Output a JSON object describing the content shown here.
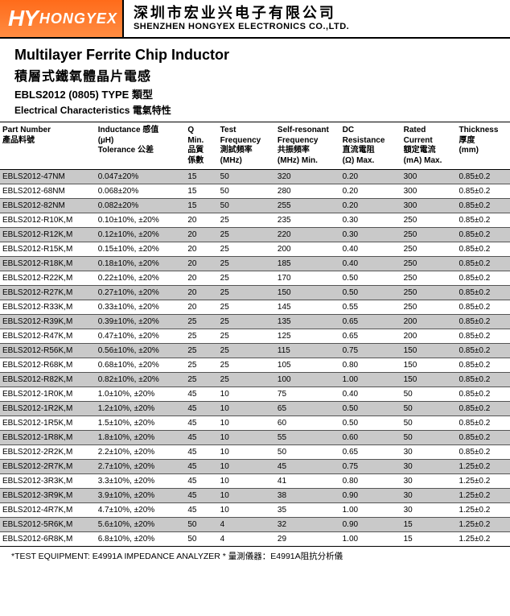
{
  "header": {
    "logo_hy": "HY",
    "logo_brand": "HONGYEX",
    "company_cn": "深圳市宏业兴电子有限公司",
    "company_en": "SHENZHEN HONGYEX ELECTRONICS CO.,LTD."
  },
  "titles": {
    "title_en": "Multilayer Ferrite Chip Inductor",
    "title_cn": "積層式鐵氧體晶片電感",
    "subtitle": "EBLS2012 (0805) TYPE 類型",
    "elec": "Electrical Characteristics 電氣特性"
  },
  "columns": {
    "pn": "Part Number\n產品料號",
    "ind": "Inductance 感值\n(µH)\nTolerance 公差",
    "q": "Q\nMin.\n品質\n係數",
    "tf": "Test\nFrequency\n測試頻率\n(MHz)",
    "sr": "Self-resonant\nFrequency\n共振頻率\n(MHz) Min.",
    "dc": "DC\nResistance\n直流電阻\n(Ω) Max.",
    "rc": "Rated\nCurrent\n額定電流\n(mA) Max.",
    "th": "Thickness\n厚度\n(mm)"
  },
  "rows": [
    {
      "pn": "EBLS2012-47NM",
      "ind": "0.047±20%",
      "q": "15",
      "tf": "50",
      "sr": "320",
      "dc": "0.20",
      "rc": "300",
      "th": "0.85±0.2",
      "alt": true
    },
    {
      "pn": "EBLS2012-68NM",
      "ind": "0.068±20%",
      "q": "15",
      "tf": "50",
      "sr": "280",
      "dc": "0.20",
      "rc": "300",
      "th": "0.85±0.2",
      "alt": false
    },
    {
      "pn": "EBLS2012-82NM",
      "ind": "0.082±20%",
      "q": "15",
      "tf": "50",
      "sr": "255",
      "dc": "0.20",
      "rc": "300",
      "th": "0.85±0.2",
      "alt": true
    },
    {
      "pn": "EBLS2012-R10K,M",
      "ind": "0.10±10%, ±20%",
      "q": "20",
      "tf": "25",
      "sr": "235",
      "dc": "0.30",
      "rc": "250",
      "th": "0.85±0.2",
      "alt": false
    },
    {
      "pn": "EBLS2012-R12K,M",
      "ind": "0.12±10%, ±20%",
      "q": "20",
      "tf": "25",
      "sr": "220",
      "dc": "0.30",
      "rc": "250",
      "th": "0.85±0.2",
      "alt": true
    },
    {
      "pn": "EBLS2012-R15K,M",
      "ind": "0.15±10%, ±20%",
      "q": "20",
      "tf": "25",
      "sr": "200",
      "dc": "0.40",
      "rc": "250",
      "th": "0.85±0.2",
      "alt": false
    },
    {
      "pn": "EBLS2012-R18K,M",
      "ind": "0.18±10%, ±20%",
      "q": "20",
      "tf": "25",
      "sr": "185",
      "dc": "0.40",
      "rc": "250",
      "th": "0.85±0.2",
      "alt": true
    },
    {
      "pn": "EBLS2012-R22K,M",
      "ind": "0.22±10%, ±20%",
      "q": "20",
      "tf": "25",
      "sr": "170",
      "dc": "0.50",
      "rc": "250",
      "th": "0.85±0.2",
      "alt": false
    },
    {
      "pn": "EBLS2012-R27K,M",
      "ind": "0.27±10%, ±20%",
      "q": "20",
      "tf": "25",
      "sr": "150",
      "dc": "0.50",
      "rc": "250",
      "th": "0.85±0.2",
      "alt": true
    },
    {
      "pn": "EBLS2012-R33K,M",
      "ind": "0.33±10%, ±20%",
      "q": "20",
      "tf": "25",
      "sr": "145",
      "dc": "0.55",
      "rc": "250",
      "th": "0.85±0.2",
      "alt": false
    },
    {
      "pn": "EBLS2012-R39K,M",
      "ind": "0.39±10%, ±20%",
      "q": "25",
      "tf": "25",
      "sr": "135",
      "dc": "0.65",
      "rc": "200",
      "th": "0.85±0.2",
      "alt": true
    },
    {
      "pn": "EBLS2012-R47K,M",
      "ind": "0.47±10%, ±20%",
      "q": "25",
      "tf": "25",
      "sr": "125",
      "dc": "0.65",
      "rc": "200",
      "th": "0.85±0.2",
      "alt": false
    },
    {
      "pn": "EBLS2012-R56K,M",
      "ind": "0.56±10%, ±20%",
      "q": "25",
      "tf": "25",
      "sr": "115",
      "dc": "0.75",
      "rc": "150",
      "th": "0.85±0.2",
      "alt": true
    },
    {
      "pn": "EBLS2012-R68K,M",
      "ind": "0.68±10%, ±20%",
      "q": "25",
      "tf": "25",
      "sr": "105",
      "dc": "0.80",
      "rc": "150",
      "th": "0.85±0.2",
      "alt": false
    },
    {
      "pn": "EBLS2012-R82K,M",
      "ind": "0.82±10%, ±20%",
      "q": "25",
      "tf": "25",
      "sr": "100",
      "dc": "1.00",
      "rc": "150",
      "th": "0.85±0.2",
      "alt": true
    },
    {
      "pn": "EBLS2012-1R0K,M",
      "ind": "1.0±10%, ±20%",
      "q": "45",
      "tf": "10",
      "sr": "75",
      "dc": "0.40",
      "rc": "50",
      "th": "0.85±0.2",
      "alt": false
    },
    {
      "pn": "EBLS2012-1R2K,M",
      "ind": "1.2±10%, ±20%",
      "q": "45",
      "tf": "10",
      "sr": "65",
      "dc": "0.50",
      "rc": "50",
      "th": "0.85±0.2",
      "alt": true
    },
    {
      "pn": "EBLS2012-1R5K,M",
      "ind": "1.5±10%, ±20%",
      "q": "45",
      "tf": "10",
      "sr": "60",
      "dc": "0.50",
      "rc": "50",
      "th": "0.85±0.2",
      "alt": false
    },
    {
      "pn": "EBLS2012-1R8K,M",
      "ind": "1.8±10%, ±20%",
      "q": "45",
      "tf": "10",
      "sr": "55",
      "dc": "0.60",
      "rc": "50",
      "th": "0.85±0.2",
      "alt": true
    },
    {
      "pn": "EBLS2012-2R2K,M",
      "ind": "2.2±10%, ±20%",
      "q": "45",
      "tf": "10",
      "sr": "50",
      "dc": "0.65",
      "rc": "30",
      "th": "0.85±0.2",
      "alt": false
    },
    {
      "pn": "EBLS2012-2R7K,M",
      "ind": "2.7±10%, ±20%",
      "q": "45",
      "tf": "10",
      "sr": "45",
      "dc": "0.75",
      "rc": "30",
      "th": "1.25±0.2",
      "alt": true
    },
    {
      "pn": "EBLS2012-3R3K,M",
      "ind": "3.3±10%, ±20%",
      "q": "45",
      "tf": "10",
      "sr": "41",
      "dc": "0.80",
      "rc": "30",
      "th": "1.25±0.2",
      "alt": false
    },
    {
      "pn": "EBLS2012-3R9K,M",
      "ind": "3.9±10%, ±20%",
      "q": "45",
      "tf": "10",
      "sr": "38",
      "dc": "0.90",
      "rc": "30",
      "th": "1.25±0.2",
      "alt": true
    },
    {
      "pn": "EBLS2012-4R7K,M",
      "ind": "4.7±10%, ±20%",
      "q": "45",
      "tf": "10",
      "sr": "35",
      "dc": "1.00",
      "rc": "30",
      "th": "1.25±0.2",
      "alt": false
    },
    {
      "pn": "EBLS2012-5R6K,M",
      "ind": "5.6±10%, ±20%",
      "q": "50",
      "tf": "4",
      "sr": "32",
      "dc": "0.90",
      "rc": "15",
      "th": "1.25±0.2",
      "alt": true
    },
    {
      "pn": "EBLS2012-6R8K,M",
      "ind": "6.8±10%, ±20%",
      "q": "50",
      "tf": "4",
      "sr": "29",
      "dc": "1.00",
      "rc": "15",
      "th": "1.25±0.2",
      "alt": false
    }
  ],
  "footnote": "*TEST EQUIPMENT: E4991A IMPEDANCE ANALYZER    * 量測儀器：E4991A阻抗分析儀",
  "colors": {
    "header_bg": "#ff7a2a",
    "alt_row": "#c9c9c9",
    "border": "#000000"
  }
}
